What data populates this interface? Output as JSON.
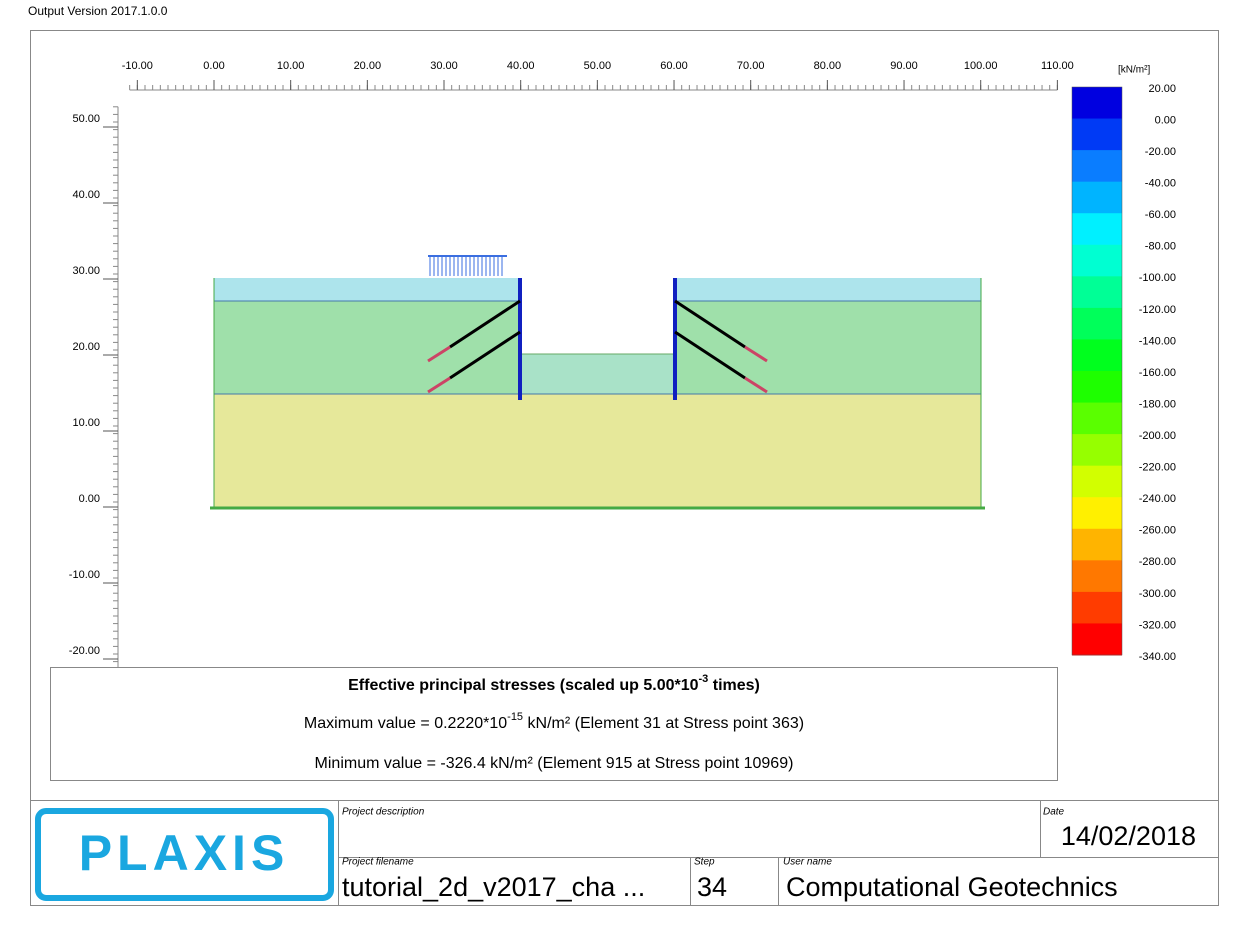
{
  "header": {
    "version": "Output Version 2017.1.0.0"
  },
  "plot": {
    "x_ticks": [
      "-10.00",
      "0.00",
      "10.00",
      "20.00",
      "30.00",
      "40.00",
      "50.00",
      "60.00",
      "70.00",
      "80.00",
      "90.00",
      "100.00",
      "110.00"
    ],
    "y_ticks": [
      "50.00",
      "40.00",
      "30.00",
      "20.00",
      "10.00",
      "0.00",
      "-10.00",
      "-20.00"
    ]
  },
  "legend": {
    "unit": "[kN/m²]",
    "labels": [
      "20.00",
      "0.00",
      "-20.00",
      "-40.00",
      "-60.00",
      "-80.00",
      "-100.00",
      "-120.00",
      "-140.00",
      "-160.00",
      "-180.00",
      "-200.00",
      "-220.00",
      "-240.00",
      "-260.00",
      "-280.00",
      "-300.00",
      "-320.00",
      "-340.00"
    ]
  },
  "caption": {
    "title": {
      "text": "Effective principal stresses (scaled up 5.00*10",
      "exponent": "-3",
      "suffix": " times)"
    },
    "max": {
      "text": "Maximum value = 0.2220*10",
      "exponent": "-15",
      "suffix": " kN/m² (Element 31 at Stress point 363)"
    },
    "min": "Minimum value = -326.4 kN/m² (Element 915 at Stress point 10969)"
  },
  "title_block": {
    "logo": "PLAXIS",
    "project_description_label": "Project description",
    "date_label": "Date",
    "date": "14/02/2018",
    "project_filename_label": "Project filename",
    "project_filename": "tutorial_2d_v2017_cha ...",
    "step_label": "Step",
    "step": "34",
    "user_name_label": "User name",
    "user_name": "Computational Geotechnics"
  }
}
